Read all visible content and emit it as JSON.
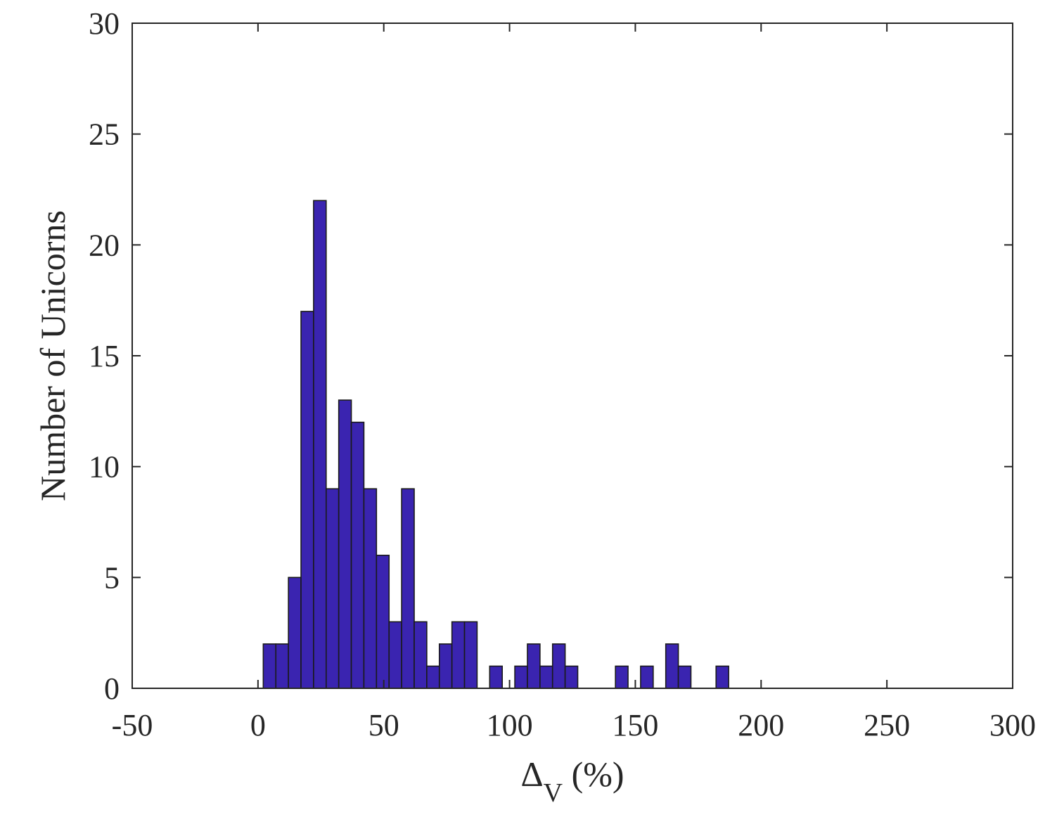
{
  "chart_data": {
    "type": "bar",
    "title": "",
    "xlabel": "Δ",
    "xlabel_subscript": "V",
    "xlabel_suffix": " (%)",
    "ylabel": "Number of Unicorns",
    "xlim": [
      -50,
      300
    ],
    "ylim": [
      0,
      30
    ],
    "xticks": [
      "-50",
      "0",
      "50",
      "100",
      "150",
      "200",
      "250",
      "300"
    ],
    "xtick_values": [
      -50,
      0,
      50,
      100,
      150,
      200,
      250,
      300
    ],
    "yticks": [
      "0",
      "5",
      "10",
      "15",
      "20",
      "25",
      "30"
    ],
    "ytick_values": [
      0,
      5,
      10,
      15,
      20,
      25,
      30
    ],
    "grid": false,
    "bar_color": "#3a24b0",
    "bar_edge_color": "#1a1a1a",
    "bins": [
      {
        "x0": 2.1,
        "x1": 7.1,
        "count": 2
      },
      {
        "x0": 7.1,
        "x1": 12.1,
        "count": 2
      },
      {
        "x0": 12.1,
        "x1": 17.1,
        "count": 5
      },
      {
        "x0": 17.1,
        "x1": 22.1,
        "count": 17
      },
      {
        "x0": 22.1,
        "x1": 27.1,
        "count": 22
      },
      {
        "x0": 27.1,
        "x1": 32.1,
        "count": 9
      },
      {
        "x0": 32.1,
        "x1": 37.1,
        "count": 13
      },
      {
        "x0": 37.1,
        "x1": 42.1,
        "count": 12
      },
      {
        "x0": 42.1,
        "x1": 47.1,
        "count": 9
      },
      {
        "x0": 47.1,
        "x1": 52.1,
        "count": 6
      },
      {
        "x0": 52.1,
        "x1": 57.1,
        "count": 3
      },
      {
        "x0": 57.1,
        "x1": 62.1,
        "count": 9
      },
      {
        "x0": 62.1,
        "x1": 67.1,
        "count": 3
      },
      {
        "x0": 67.1,
        "x1": 72.1,
        "count": 1
      },
      {
        "x0": 72.1,
        "x1": 77.1,
        "count": 2
      },
      {
        "x0": 77.1,
        "x1": 82.1,
        "count": 3
      },
      {
        "x0": 82.1,
        "x1": 87.1,
        "count": 3
      },
      {
        "x0": 92.1,
        "x1": 97.1,
        "count": 1
      },
      {
        "x0": 102.1,
        "x1": 107.1,
        "count": 1
      },
      {
        "x0": 107.1,
        "x1": 112.1,
        "count": 2
      },
      {
        "x0": 112.1,
        "x1": 117.1,
        "count": 1
      },
      {
        "x0": 117.1,
        "x1": 122.1,
        "count": 2
      },
      {
        "x0": 122.1,
        "x1": 127.1,
        "count": 1
      },
      {
        "x0": 142.1,
        "x1": 147.1,
        "count": 1
      },
      {
        "x0": 152.1,
        "x1": 157.1,
        "count": 1
      },
      {
        "x0": 162.1,
        "x1": 167.1,
        "count": 2
      },
      {
        "x0": 167.1,
        "x1": 172.1,
        "count": 1
      },
      {
        "x0": 182.1,
        "x1": 187.1,
        "count": 1
      }
    ]
  }
}
